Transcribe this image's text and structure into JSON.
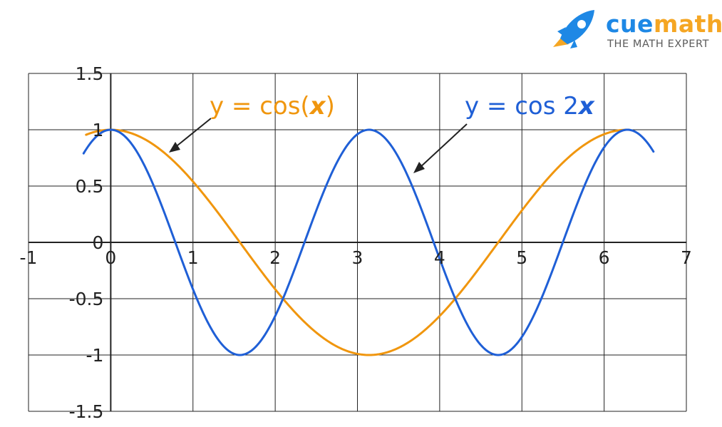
{
  "brand": {
    "name_a": "cue",
    "name_b": "math",
    "tagline": "THE MATH EXPERT",
    "color_a": "#1e88e5",
    "color_b": "#f5a623"
  },
  "chart_data": {
    "type": "line",
    "title": "",
    "xlabel": "",
    "ylabel": "",
    "xlim": [
      -1,
      7
    ],
    "ylim": [
      -1.5,
      1.5
    ],
    "grid": true,
    "xticks": [
      -1,
      0,
      1,
      2,
      3,
      4,
      5,
      6,
      7
    ],
    "yticks": [
      1.5,
      1,
      0.5,
      0,
      -0.5,
      -1,
      -1.5
    ],
    "xtick_labels": [
      "-1",
      "0",
      "1",
      "2",
      "3",
      "4",
      "5",
      "6",
      "7"
    ],
    "ytick_labels": [
      "1.5",
      "1",
      "0.5",
      "0",
      "-0.5",
      "-1",
      "-1.5"
    ],
    "series": [
      {
        "function": "cos(x)",
        "x_range": [
          -0.3,
          6.3
        ],
        "color": "#f0960e"
      },
      {
        "function": "cos(2x)",
        "x_range": [
          -0.33,
          6.6
        ],
        "color": "#1f5fd6"
      }
    ],
    "annotations": [
      {
        "text_a": "y = cos(",
        "text_var": "x",
        "text_b": ")",
        "color": "#f0960e",
        "points_to_series": 0
      },
      {
        "text_a": "y = cos 2",
        "text_var": "x",
        "text_b": "",
        "color": "#1f5fd6",
        "points_to_series": 1
      }
    ]
  }
}
